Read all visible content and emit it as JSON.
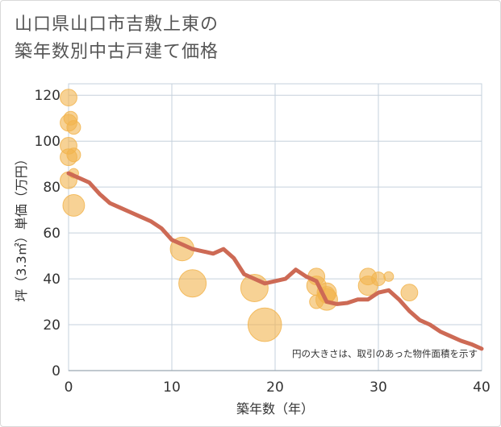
{
  "title_lines": [
    "山口県山口市吉敷上東の",
    "築年数別中古戸建て価格"
  ],
  "note": "円の大きさは、取引のあった物件面積を示す",
  "colors": {
    "bubble": "#f2b44e",
    "line": "#cd6a55",
    "grid": "#c5d0dc",
    "axis": "#9aa6b2"
  },
  "chart_data": {
    "type": "scatter",
    "title": "山口県山口市吉敷上東の 築年数別中古戸建て価格",
    "xlabel": "築年数（年）",
    "ylabel": "坪（3.3㎡）単価（万円）",
    "xlim": [
      0,
      40
    ],
    "ylim": [
      0,
      125
    ],
    "x_ticks": [
      0,
      10,
      20,
      30,
      40
    ],
    "y_ticks": [
      0,
      20,
      40,
      60,
      80,
      100,
      120
    ],
    "grid": true,
    "bubble_note": "円の大きさは、取引のあった物件面積を示す",
    "bubbles": [
      {
        "x": 0,
        "y": 119,
        "size": 3
      },
      {
        "x": 0,
        "y": 108,
        "size": 3
      },
      {
        "x": 0,
        "y": 98,
        "size": 3
      },
      {
        "x": 0,
        "y": 93,
        "size": 3
      },
      {
        "x": 0,
        "y": 83,
        "size": 3
      },
      {
        "x": 0.2,
        "y": 110,
        "size": 2
      },
      {
        "x": 0.5,
        "y": 106,
        "size": 2
      },
      {
        "x": 0.5,
        "y": 94,
        "size": 2
      },
      {
        "x": 0.5,
        "y": 86,
        "size": 1
      },
      {
        "x": 0.5,
        "y": 72,
        "size": 5
      },
      {
        "x": 11,
        "y": 53,
        "size": 6
      },
      {
        "x": 12,
        "y": 38,
        "size": 8
      },
      {
        "x": 18,
        "y": 36,
        "size": 8
      },
      {
        "x": 19,
        "y": 20,
        "size": 12
      },
      {
        "x": 24,
        "y": 41,
        "size": 3
      },
      {
        "x": 24,
        "y": 37,
        "size": 4
      },
      {
        "x": 24,
        "y": 30,
        "size": 2
      },
      {
        "x": 25,
        "y": 34,
        "size": 4
      },
      {
        "x": 25,
        "y": 31,
        "size": 5
      },
      {
        "x": 25,
        "y": 33,
        "size": 3
      },
      {
        "x": 29,
        "y": 41,
        "size": 3
      },
      {
        "x": 29,
        "y": 37,
        "size": 4
      },
      {
        "x": 30,
        "y": 40,
        "size": 2
      },
      {
        "x": 31,
        "y": 41,
        "size": 1
      },
      {
        "x": 33,
        "y": 34,
        "size": 3
      }
    ],
    "series": [
      {
        "x": [
          0,
          1,
          2,
          3,
          4,
          5,
          6,
          7,
          8,
          9,
          10,
          11,
          12,
          13,
          14,
          15,
          16,
          17,
          18,
          19,
          20,
          21,
          22,
          23,
          24,
          25,
          26,
          27,
          28,
          29,
          30,
          31,
          32,
          33,
          34,
          35,
          36,
          37,
          38,
          39,
          40
        ],
        "values": [
          86,
          84,
          82,
          77,
          73,
          71,
          69,
          67,
          65,
          62,
          57,
          55,
          53,
          52,
          51,
          53,
          49,
          42,
          40,
          38,
          39,
          40,
          44,
          41,
          39,
          30,
          29,
          29.5,
          31,
          31,
          34,
          35,
          31,
          26,
          22,
          20,
          17,
          15,
          13,
          11.5,
          9.5
        ]
      }
    ]
  }
}
